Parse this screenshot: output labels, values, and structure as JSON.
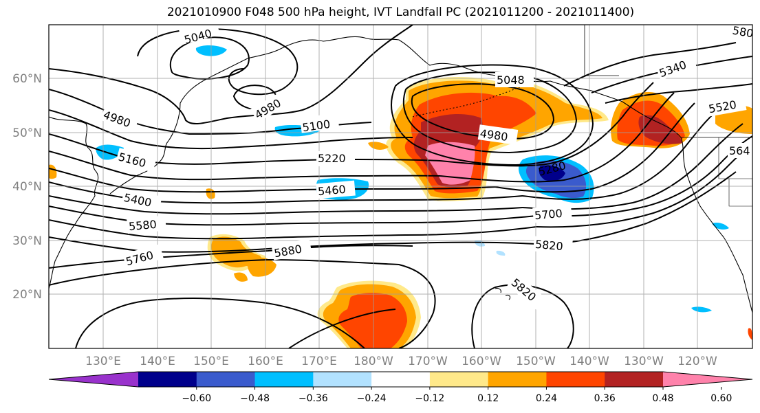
{
  "title": "2021010900 F048 500 hPa height, IVT Landfall PC (2021011200 - 2021011400)",
  "lat_labels": [
    "60°N",
    "50°N",
    "40°N",
    "30°N",
    "20°N"
  ],
  "lon_labels": [
    "130°E",
    "140°E",
    "150°E",
    "160°E",
    "170°E",
    "180°W",
    "170°W",
    "160°W",
    "150°W",
    "140°W",
    "130°W",
    "120°W"
  ],
  "contour_labels": [
    "5040",
    "4980",
    "4980",
    "5100",
    "5160",
    "5220",
    "5400",
    "5460",
    "5580",
    "5760",
    "5880",
    "5048",
    "4980",
    "5280",
    "5700",
    "5820",
    "5820",
    "5340",
    "5520",
    "564",
    "580"
  ],
  "colorbar": {
    "ticks": [
      "−0.60",
      "−0.48",
      "−0.36",
      "−0.24",
      "−0.12",
      "0.12",
      "0.24",
      "0.36",
      "0.48",
      "0.60"
    ],
    "colors": [
      "#9932cc",
      "#00008b",
      "#3a5bcd",
      "#00bfff",
      "#b2e2ff",
      "#ffffff",
      "#ffe98a",
      "#ffa500",
      "#ff4500",
      "#b22222",
      "#ff82ab"
    ]
  }
}
